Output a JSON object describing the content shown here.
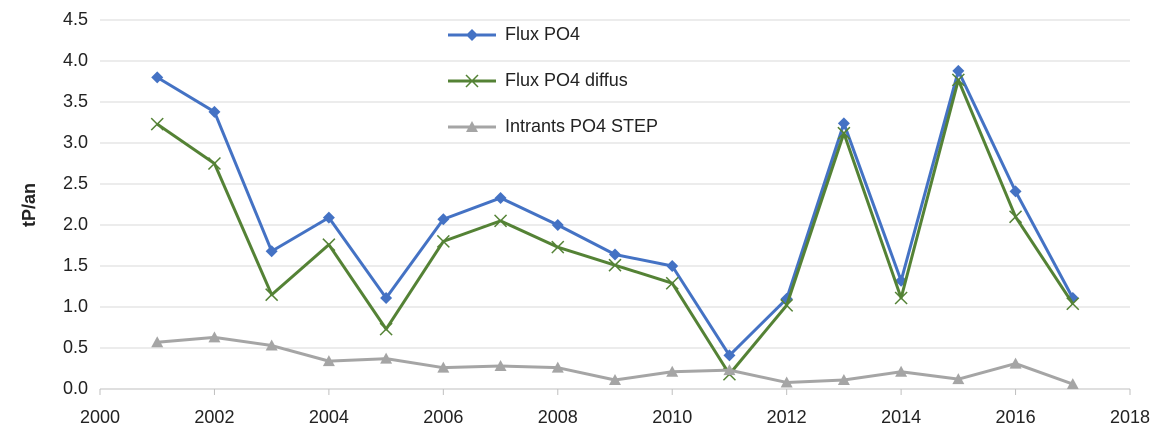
{
  "chart_data": {
    "type": "line",
    "y_label": "tP/an",
    "x": [
      2001,
      2002,
      2003,
      2004,
      2005,
      2006,
      2007,
      2008,
      2009,
      2010,
      2011,
      2012,
      2013,
      2014,
      2015,
      2016,
      2017
    ],
    "series": [
      {
        "name": "Flux PO4",
        "color": "#4472c4",
        "marker": "diamond",
        "values": [
          3.8,
          3.38,
          1.68,
          2.09,
          1.11,
          2.07,
          2.33,
          2.0,
          1.64,
          1.5,
          0.41,
          1.1,
          3.24,
          1.32,
          3.88,
          2.41,
          1.11
        ]
      },
      {
        "name": "Flux PO4 diffus",
        "color": "#548235",
        "marker": "x",
        "values": [
          3.23,
          2.75,
          1.15,
          1.76,
          0.73,
          1.8,
          2.05,
          1.73,
          1.51,
          1.29,
          0.18,
          1.02,
          3.12,
          1.11,
          3.77,
          2.1,
          1.04
        ]
      },
      {
        "name": "Intrants PO4 STEP",
        "color": "#a5a5a5",
        "marker": "triangle",
        "values": [
          0.57,
          0.63,
          0.53,
          0.34,
          0.37,
          0.26,
          0.28,
          0.26,
          0.11,
          0.21,
          0.23,
          0.08,
          0.11,
          0.21,
          0.12,
          0.31,
          0.06
        ]
      }
    ],
    "xlim": [
      2000,
      2018
    ],
    "xticks": [
      2000,
      2002,
      2004,
      2006,
      2008,
      2010,
      2012,
      2014,
      2016,
      2018
    ],
    "ylim": [
      0,
      4.5
    ],
    "yticks": [
      {
        "value": 0,
        "label": "0.0"
      },
      0.5,
      {
        "value": 1,
        "label": "1.0"
      },
      1.5,
      {
        "value": 2,
        "label": "2.0"
      },
      2.5,
      {
        "value": 3,
        "label": "3.0"
      },
      3.5,
      {
        "value": 4,
        "label": "4.0"
      },
      4.5
    ],
    "grid": true,
    "legend": "upper center"
  }
}
